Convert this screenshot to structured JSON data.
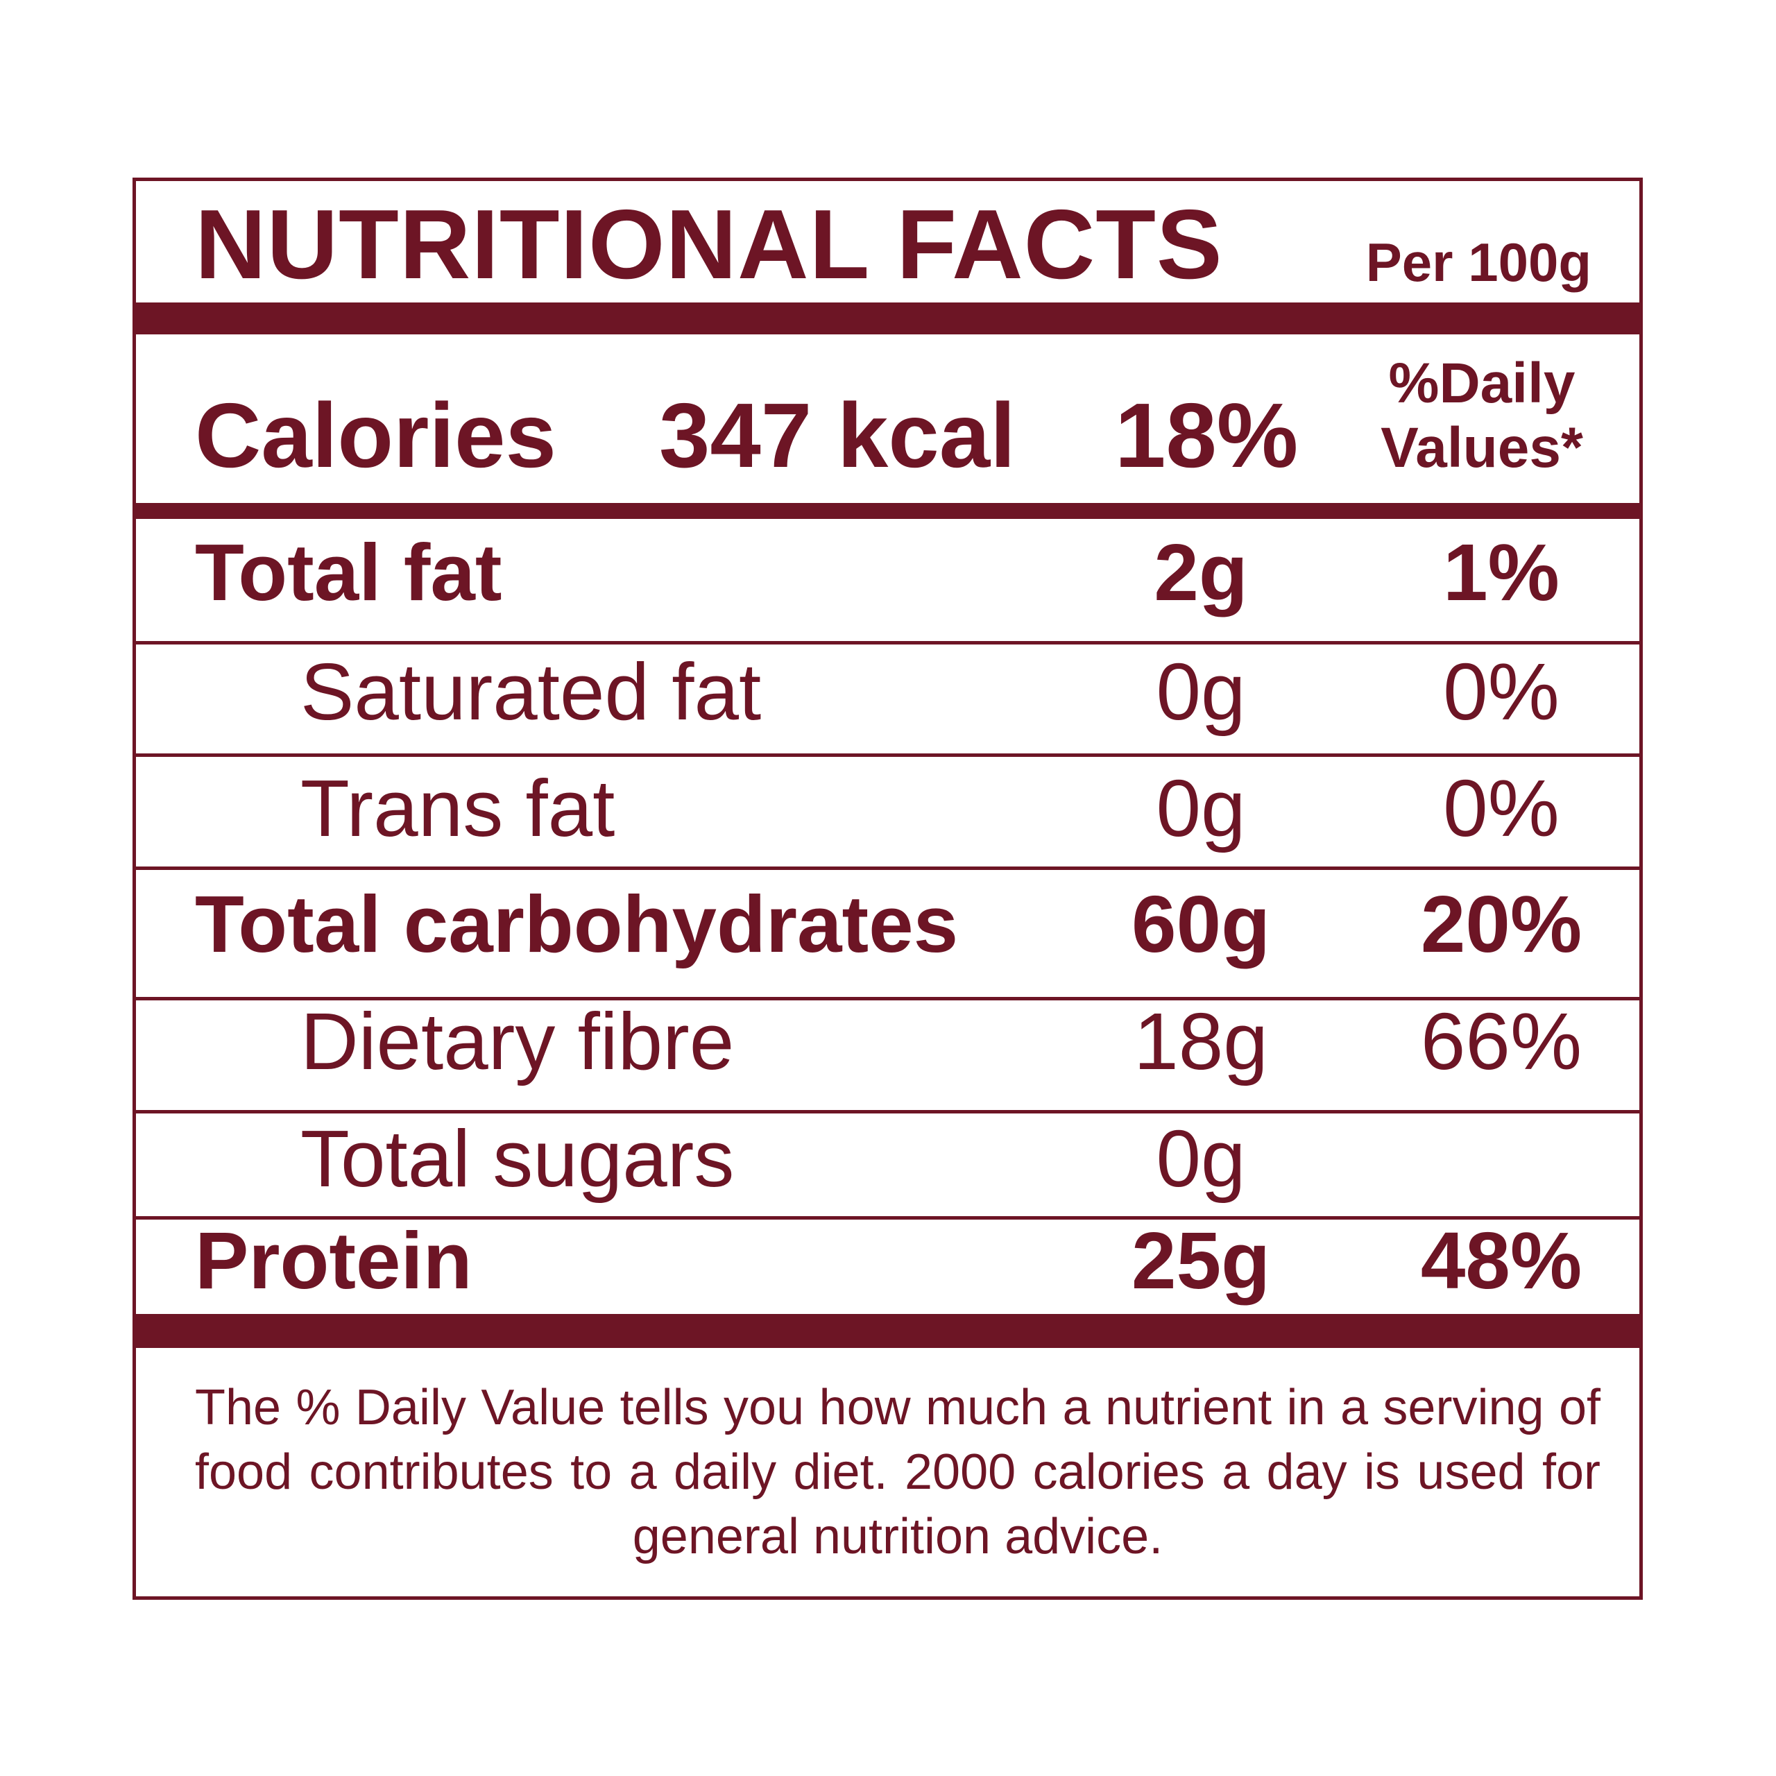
{
  "header": {
    "title": "NUTRITIONAL FACTS",
    "serving": "Per 100g"
  },
  "calories": {
    "label": "Calories",
    "amount": "347 kcal",
    "daily_value": "18%",
    "dv_heading": [
      "%Daily",
      "Values*"
    ]
  },
  "rows": [
    {
      "label": "Total fat",
      "amount": "2g",
      "daily_value": "1%"
    },
    {
      "label": "Saturated fat",
      "amount": "0g",
      "daily_value": "0%"
    },
    {
      "label": "Trans fat",
      "amount": "0g",
      "daily_value": "0%"
    },
    {
      "label": "Total carbohydrates",
      "amount": "60g",
      "daily_value": "20%"
    },
    {
      "label": "Dietary fibre",
      "amount": "18g",
      "daily_value": "66%"
    },
    {
      "label": "Total sugars",
      "amount": "0g"
    },
    {
      "label": "Protein",
      "amount": "25g",
      "daily_value": "48%"
    }
  ],
  "footnote": "The % Daily Value tells you how much a nutrient in a serving of food contributes to a daily diet. 2000 calories a day is used for general nutrition advice."
}
